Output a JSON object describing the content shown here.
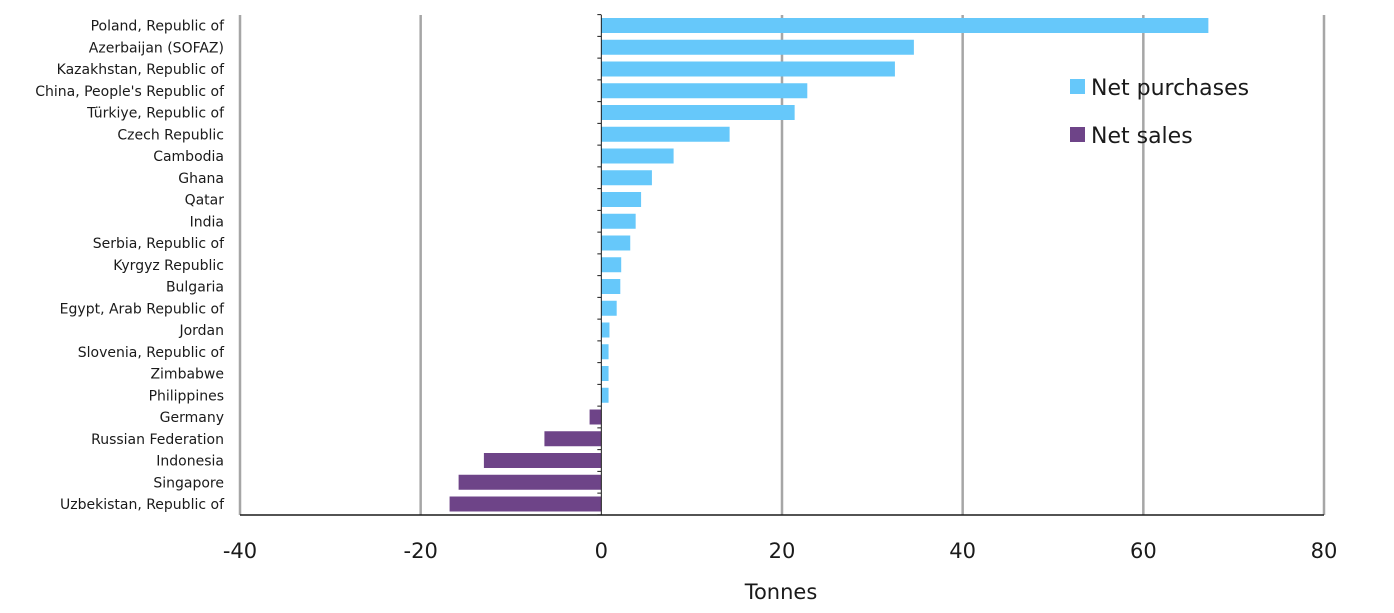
{
  "chart_data": {
    "type": "bar",
    "orientation": "horizontal",
    "title": "",
    "xlabel": "Tonnes",
    "ylabel": "",
    "xlim": [
      -40,
      80
    ],
    "xticks": [
      -40,
      -20,
      0,
      20,
      40,
      60,
      80
    ],
    "grid": "vertical",
    "legend_position": "top-right",
    "colors": {
      "Net purchases": "#66c8fa",
      "Net sales": "#6e4488",
      "gridline": "#a6a6a6",
      "axis": "#1a1a1a",
      "text": "#1a1a1a"
    },
    "categories": [
      "Poland, Republic of",
      "Azerbaijan (SOFAZ)",
      "Kazakhstan, Republic of",
      "China, People's Republic of",
      "Türkiye, Republic of",
      "Czech Republic",
      "Cambodia",
      "Ghana",
      "Qatar",
      "India",
      "Serbia, Republic of",
      "Kyrgyz Republic",
      "Bulgaria",
      "Egypt, Arab Republic of",
      "Jordan",
      "Slovenia, Republic of",
      "Zimbabwe",
      "Philippines",
      "Germany",
      "Russian Federation",
      "Indonesia",
      "Singapore",
      "Uzbekistan, Republic of"
    ],
    "values": [
      67.2,
      34.6,
      32.5,
      22.8,
      21.4,
      14.2,
      8.0,
      5.6,
      4.4,
      3.8,
      3.2,
      2.2,
      2.1,
      1.7,
      0.9,
      0.8,
      0.8,
      0.8,
      -1.3,
      -6.3,
      -13.0,
      -15.8,
      -16.8
    ],
    "series_by_category": [
      "Net purchases",
      "Net purchases",
      "Net purchases",
      "Net purchases",
      "Net purchases",
      "Net purchases",
      "Net purchases",
      "Net purchases",
      "Net purchases",
      "Net purchases",
      "Net purchases",
      "Net purchases",
      "Net purchases",
      "Net purchases",
      "Net purchases",
      "Net purchases",
      "Net purchases",
      "Net purchases",
      "Net sales",
      "Net sales",
      "Net sales",
      "Net sales",
      "Net sales"
    ],
    "legend": [
      {
        "name": "Net purchases"
      },
      {
        "name": "Net sales"
      }
    ]
  }
}
